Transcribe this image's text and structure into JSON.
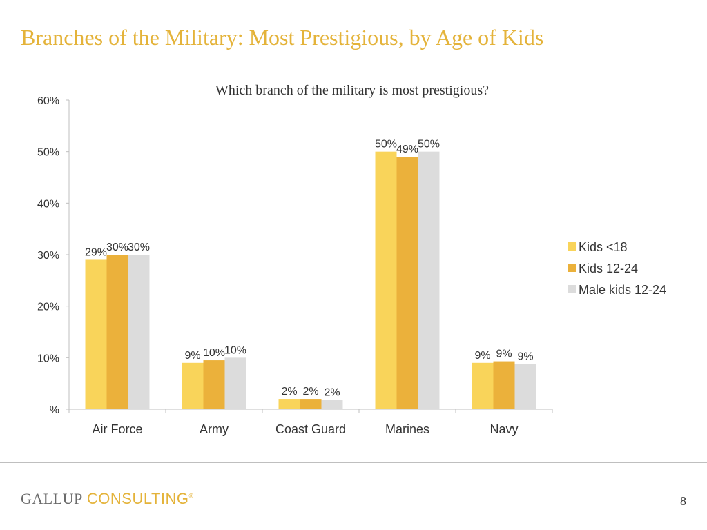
{
  "slide": {
    "title": "Branches of the Military: Most Prestigious, by Age of Kids",
    "page_number": "8"
  },
  "footer": {
    "logo_part1": "GALLUP",
    "logo_part2": "CONSULTING",
    "logo_mark": "®"
  },
  "colors": {
    "title": "#E4B33A",
    "series": [
      "#F9D45A",
      "#EBB13B",
      "#DCDCDC"
    ]
  },
  "chart_data": {
    "type": "bar",
    "title": "Which branch of the military is most prestigious?",
    "categories": [
      "Air Force",
      "Army",
      "Coast Guard",
      "Marines",
      "Navy"
    ],
    "series": [
      {
        "name": "Kids <18",
        "values": [
          29,
          9,
          2,
          50,
          9
        ],
        "labels": [
          "29%",
          "9%",
          "2%",
          "50%",
          "9%"
        ]
      },
      {
        "name": "Kids 12-24",
        "values": [
          30,
          9.5,
          2,
          49,
          9.3
        ],
        "labels": [
          "30%",
          "10%",
          "2%",
          "49%",
          "9%"
        ]
      },
      {
        "name": "Male kids 12-24",
        "values": [
          30,
          10,
          1.8,
          50,
          8.8
        ],
        "labels": [
          "30%",
          "10%",
          "2%",
          "50%",
          "9%"
        ]
      }
    ],
    "ylim": [
      0,
      60
    ],
    "yticks": [
      0,
      10,
      20,
      30,
      40,
      50,
      60
    ],
    "ytick_labels": [
      "%",
      "10%",
      "20%",
      "30%",
      "40%",
      "50%",
      "60%"
    ],
    "xlabel": "",
    "ylabel": "",
    "grid": false,
    "legend_position": "right"
  }
}
